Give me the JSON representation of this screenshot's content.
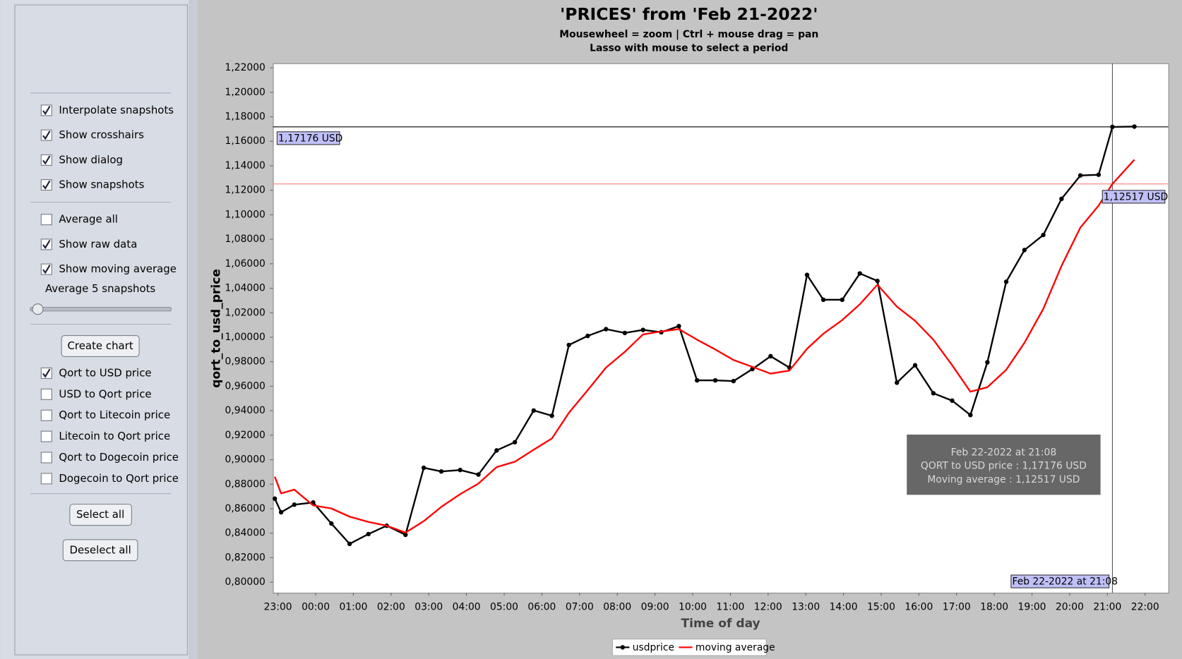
{
  "sidebar": {
    "view_options": [
      {
        "label": "Interpolate snapshots",
        "checked": true
      },
      {
        "label": "Show crosshairs",
        "checked": true
      },
      {
        "label": "Show dialog",
        "checked": true
      },
      {
        "label": "Show snapshots",
        "checked": true
      }
    ],
    "data_options": [
      {
        "label": "Average all",
        "checked": false
      },
      {
        "label": "Show raw data",
        "checked": true
      },
      {
        "label": "Show moving average",
        "checked": true
      }
    ],
    "average_label": "Average 5 snapshots",
    "create_button": "Create chart",
    "price_options": [
      {
        "label": "Qort to USD price",
        "checked": true
      },
      {
        "label": "USD to Qort price",
        "checked": false
      },
      {
        "label": "Qort to Litecoin price",
        "checked": false
      },
      {
        "label": "Litecoin to Qort price",
        "checked": false
      },
      {
        "label": "Qort to Dogecoin price",
        "checked": false
      },
      {
        "label": "Dogecoin to Qort price",
        "checked": false
      }
    ],
    "select_all": "Select all",
    "deselect_all": "Deselect all"
  },
  "chart_data": {
    "type": "line",
    "title": "'PRICES' from 'Feb 21-2022'",
    "subtitle": [
      "Mousewheel = zoom | Ctrl + mouse drag = pan",
      "Lasso with mouse to select a period"
    ],
    "xlabel": "Time of day",
    "ylabel": "qort_to_usd_price",
    "x": [
      "22:55",
      "23:05",
      "23:26",
      "23:56",
      "00:25",
      "00:54",
      "01:24",
      "01:53",
      "02:23",
      "02:52",
      "03:20",
      "03:50",
      "04:19",
      "04:48",
      "05:17",
      "05:47",
      "06:16",
      "06:43",
      "07:13",
      "07:42",
      "08:12",
      "08:41",
      "09:10",
      "09:38",
      "10:07",
      "10:36",
      "11:05",
      "11:35",
      "12:04",
      "12:34",
      "13:02",
      "13:28",
      "13:58",
      "14:26",
      "14:54",
      "15:25",
      "15:54",
      "16:23",
      "16:53",
      "17:22",
      "17:49",
      "18:19",
      "18:48",
      "19:18",
      "19:47",
      "20:17",
      "20:46",
      "21:08",
      "21:43"
    ],
    "series": [
      {
        "name": "usdprice",
        "color": "#000000",
        "markers": true,
        "values": [
          0.8682,
          0.8571,
          0.8633,
          0.8651,
          0.8479,
          0.8313,
          0.8393,
          0.8461,
          0.8387,
          0.8934,
          0.8904,
          0.8916,
          0.8879,
          0.9076,
          0.9143,
          0.9402,
          0.9359,
          0.9937,
          1.0011,
          1.0066,
          1.0035,
          1.006,
          1.0041,
          1.0091,
          0.9648,
          0.9648,
          0.9642,
          0.974,
          0.9845,
          0.9752,
          1.0509,
          1.0306,
          1.0306,
          1.0521,
          1.046,
          0.9629,
          0.9771,
          0.9543,
          0.9482,
          0.9365,
          0.9795,
          1.0453,
          1.0712,
          1.0835,
          1.113,
          1.1321,
          1.1327,
          1.17176,
          1.172
        ]
      },
      {
        "name": "moving average",
        "color": "#ff0000",
        "markers": false,
        "values": [
          0.8861,
          0.8725,
          0.8756,
          0.8627,
          0.8602,
          0.8535,
          0.8492,
          0.8461,
          0.8405,
          0.8498,
          0.8615,
          0.8719,
          0.8805,
          0.894,
          0.8984,
          0.9082,
          0.9174,
          0.9383,
          0.9568,
          0.9752,
          0.9881,
          1.0023,
          1.0047,
          1.0066,
          0.998,
          0.99,
          0.9814,
          0.9758,
          0.9703,
          0.9728,
          0.9906,
          1.0029,
          1.014,
          1.0269,
          1.0429,
          1.025,
          1.0134,
          0.998,
          0.9771,
          0.9555,
          0.9592,
          0.9734,
          0.9955,
          1.0232,
          1.0583,
          1.0896,
          1.1075,
          1.12517,
          1.145
        ]
      }
    ],
    "xlim": [
      "22:52",
      "22:37"
    ],
    "xticks": [
      "23:00",
      "00:00",
      "01:00",
      "02:00",
      "03:00",
      "04:00",
      "05:00",
      "06:00",
      "07:00",
      "08:00",
      "09:00",
      "10:00",
      "11:00",
      "12:00",
      "13:00",
      "14:00",
      "15:00",
      "16:00",
      "17:00",
      "18:00",
      "19:00",
      "20:00",
      "21:00",
      "22:00"
    ],
    "ylim": [
      0.7914,
      1.2237
    ],
    "yticks": [
      {
        "value": 1.22,
        "label": "1,22000"
      },
      {
        "value": 1.2,
        "label": "1,20000"
      },
      {
        "value": 1.18,
        "label": "1,18000"
      },
      {
        "value": 1.16,
        "label": "1,16000"
      },
      {
        "value": 1.14,
        "label": "1,14000"
      },
      {
        "value": 1.12,
        "label": "1,12000"
      },
      {
        "value": 1.1,
        "label": "1,10000"
      },
      {
        "value": 1.08,
        "label": "1,08000"
      },
      {
        "value": 1.06,
        "label": "1,06000"
      },
      {
        "value": 1.04,
        "label": "1,04000"
      },
      {
        "value": 1.02,
        "label": "1,02000"
      },
      {
        "value": 1.0,
        "label": "1,00000"
      },
      {
        "value": 0.98,
        "label": "0,98000"
      },
      {
        "value": 0.96,
        "label": "0,96000"
      },
      {
        "value": 0.94,
        "label": "0,94000"
      },
      {
        "value": 0.92,
        "label": "0,92000"
      },
      {
        "value": 0.9,
        "label": "0,90000"
      },
      {
        "value": 0.88,
        "label": "0,88000"
      },
      {
        "value": 0.86,
        "label": "0,86000"
      },
      {
        "value": 0.84,
        "label": "0,84000"
      },
      {
        "value": 0.82,
        "label": "0,82000"
      },
      {
        "value": 0.8,
        "label": "0,80000"
      }
    ],
    "grid": false,
    "legend": "bottom",
    "crosshair": {
      "x": "21:08",
      "y": 1.17176,
      "y_average": 1.12517,
      "y_label": "1,17176 USD",
      "y_average_label": "1,12517 USD",
      "x_label": "Feb 22-2022 at 21:08"
    },
    "tooltip": [
      "Feb 22-2022 at 21:08",
      "QORT to USD price : 1,17176 USD",
      "Moving average : 1,12517 USD"
    ]
  }
}
